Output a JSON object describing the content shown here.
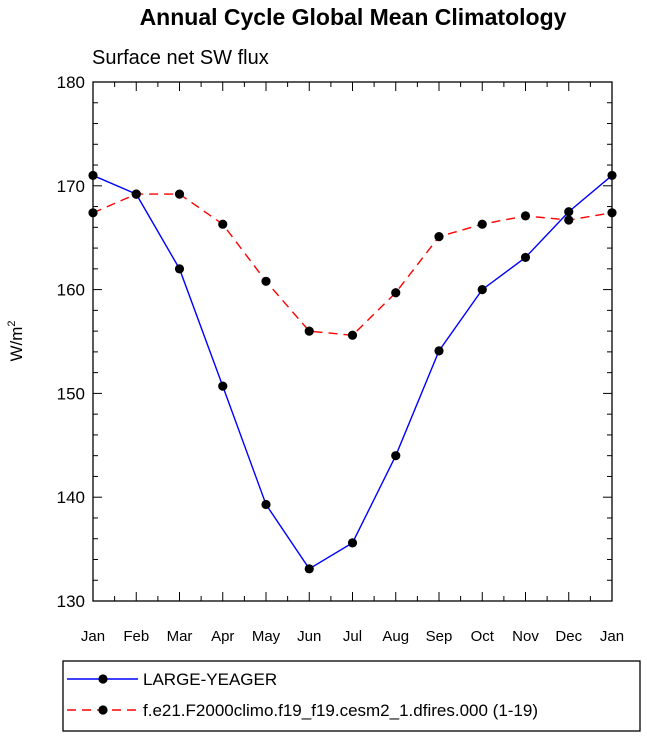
{
  "chart_data": {
    "type": "line",
    "title": "Annual Cycle Global Mean Climatology",
    "subtitle": "Surface net SW flux",
    "ylabel": "W/m",
    "ylabel_sup": "2",
    "xlabel": "",
    "ylim": [
      130,
      180
    ],
    "yticks": [
      130,
      140,
      150,
      160,
      170,
      180
    ],
    "categories": [
      "Jan",
      "Feb",
      "Mar",
      "Apr",
      "May",
      "Jun",
      "Jul",
      "Aug",
      "Sep",
      "Oct",
      "Nov",
      "Dec",
      "Jan"
    ],
    "series": [
      {
        "name": "LARGE-YEAGER",
        "color": "#0000ff",
        "dash": "solid",
        "marker": "dot",
        "values": [
          171.0,
          169.2,
          162.0,
          150.7,
          139.3,
          133.1,
          135.6,
          144.0,
          154.1,
          160.0,
          163.1,
          167.5,
          171.0
        ]
      },
      {
        "name": "f.e21.F2000climo.f19_f19.cesm2_1.dfires.000 (1-19)",
        "color": "#ff0000",
        "dash": "dashed",
        "marker": "dot",
        "values": [
          167.4,
          169.2,
          169.2,
          166.3,
          160.8,
          156.0,
          155.6,
          159.7,
          165.1,
          166.3,
          167.1,
          166.7,
          167.4
        ]
      }
    ],
    "legend_position": "bottom"
  }
}
